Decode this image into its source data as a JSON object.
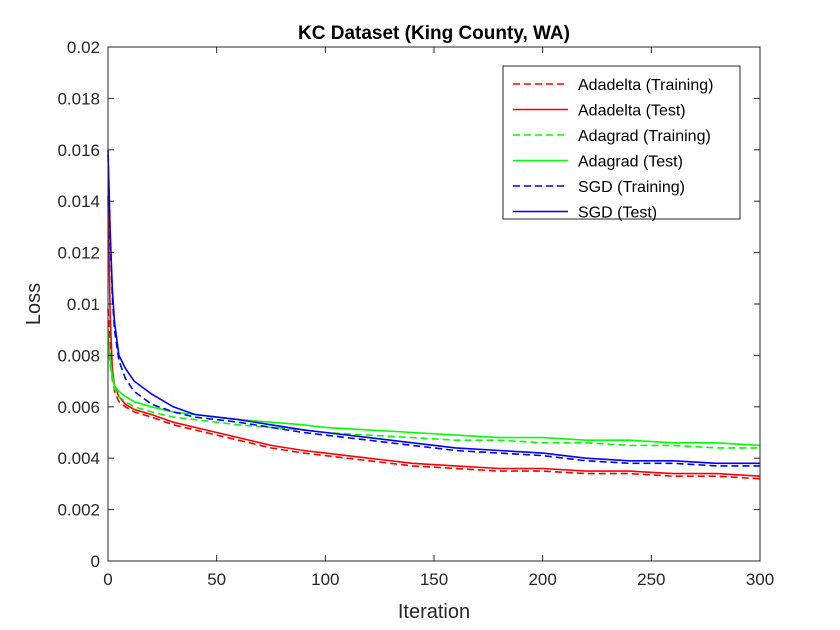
{
  "chart_data": {
    "type": "line",
    "title": "KC Dataset (King County, WA)",
    "xlabel": "Iteration",
    "ylabel": "Loss",
    "xlim": [
      0,
      300
    ],
    "ylim": [
      0,
      0.02
    ],
    "xticks": [
      0,
      50,
      100,
      150,
      200,
      250,
      300
    ],
    "xtick_labels": [
      "0",
      "50",
      "100",
      "150",
      "200",
      "250",
      "300"
    ],
    "yticks": [
      0,
      0.002,
      0.004,
      0.006,
      0.008,
      0.01,
      0.012,
      0.014,
      0.016,
      0.018,
      0.02
    ],
    "ytick_labels": [
      "0",
      "0.002",
      "0.004",
      "0.006",
      "0.008",
      "0.01",
      "0.012",
      "0.014",
      "0.016",
      "0.018",
      "0.02"
    ],
    "grid": false,
    "legend_position": "top-right",
    "series": [
      {
        "name": "Adadelta (Training)",
        "color": "#ff0000",
        "dash": "dashed",
        "x": [
          0,
          1,
          2,
          3,
          5,
          8,
          12,
          20,
          30,
          40,
          50,
          60,
          75,
          90,
          100,
          120,
          140,
          160,
          180,
          200,
          220,
          240,
          260,
          280,
          300
        ],
        "y": [
          0.0098,
          0.0082,
          0.0072,
          0.0066,
          0.0062,
          0.006,
          0.0058,
          0.0056,
          0.0053,
          0.0051,
          0.0049,
          0.0047,
          0.0044,
          0.0042,
          0.0041,
          0.0039,
          0.0037,
          0.0036,
          0.0035,
          0.0035,
          0.0034,
          0.0034,
          0.0033,
          0.0033,
          0.0032
        ]
      },
      {
        "name": "Adadelta (Test)",
        "color": "#ff0000",
        "dash": "solid",
        "x": [
          0,
          1,
          2,
          3,
          5,
          8,
          12,
          20,
          30,
          40,
          50,
          60,
          75,
          90,
          100,
          120,
          140,
          160,
          180,
          200,
          220,
          240,
          260,
          280,
          300
        ],
        "y": [
          0.0142,
          0.0095,
          0.0075,
          0.0068,
          0.0064,
          0.0061,
          0.0059,
          0.0057,
          0.0054,
          0.0052,
          0.005,
          0.0048,
          0.0045,
          0.0043,
          0.0042,
          0.004,
          0.0038,
          0.0037,
          0.0036,
          0.0036,
          0.0035,
          0.0035,
          0.0034,
          0.0034,
          0.0033
        ]
      },
      {
        "name": "Adagrad (Training)",
        "color": "#00ff00",
        "dash": "dashed",
        "x": [
          0,
          1,
          2,
          3,
          5,
          8,
          12,
          20,
          30,
          40,
          50,
          60,
          75,
          90,
          100,
          120,
          140,
          160,
          180,
          200,
          220,
          240,
          260,
          280,
          300
        ],
        "y": [
          0.0085,
          0.0076,
          0.007,
          0.0067,
          0.0064,
          0.0062,
          0.006,
          0.0058,
          0.0056,
          0.0055,
          0.0054,
          0.0053,
          0.0052,
          0.0051,
          0.005,
          0.0049,
          0.0048,
          0.0047,
          0.0047,
          0.0046,
          0.0046,
          0.0045,
          0.0045,
          0.0044,
          0.0044
        ]
      },
      {
        "name": "Adagrad (Test)",
        "color": "#00ff00",
        "dash": "solid",
        "x": [
          0,
          1,
          2,
          3,
          5,
          8,
          12,
          20,
          30,
          40,
          50,
          60,
          75,
          90,
          100,
          120,
          140,
          160,
          180,
          200,
          220,
          240,
          260,
          280,
          300
        ],
        "y": [
          0.009,
          0.0078,
          0.0072,
          0.0068,
          0.0066,
          0.0064,
          0.0062,
          0.006,
          0.0058,
          0.0057,
          0.0056,
          0.0055,
          0.0054,
          0.0053,
          0.0052,
          0.0051,
          0.005,
          0.0049,
          0.0048,
          0.0048,
          0.0047,
          0.0047,
          0.0046,
          0.0046,
          0.0045
        ]
      },
      {
        "name": "SGD (Training)",
        "color": "#0000ff",
        "dash": "dashed",
        "x": [
          0,
          1,
          2,
          3,
          5,
          8,
          12,
          20,
          30,
          40,
          50,
          60,
          75,
          90,
          100,
          120,
          140,
          160,
          180,
          200,
          220,
          240,
          260,
          280,
          300
        ],
        "y": [
          0.0158,
          0.0125,
          0.0103,
          0.009,
          0.0078,
          0.0071,
          0.0066,
          0.0061,
          0.0058,
          0.0056,
          0.0055,
          0.0054,
          0.0052,
          0.005,
          0.0049,
          0.0047,
          0.0045,
          0.0043,
          0.0042,
          0.0041,
          0.0039,
          0.0038,
          0.0038,
          0.0037,
          0.0037
        ]
      },
      {
        "name": "SGD (Test)",
        "color": "#0000ff",
        "dash": "solid",
        "x": [
          0,
          1,
          2,
          3,
          5,
          8,
          12,
          20,
          30,
          40,
          50,
          60,
          75,
          90,
          100,
          120,
          140,
          160,
          180,
          200,
          220,
          240,
          260,
          280,
          300
        ],
        "y": [
          0.016,
          0.0128,
          0.0106,
          0.0093,
          0.008,
          0.0075,
          0.007,
          0.0065,
          0.006,
          0.0057,
          0.0056,
          0.0055,
          0.0053,
          0.0051,
          0.005,
          0.0048,
          0.0046,
          0.0044,
          0.0043,
          0.0042,
          0.004,
          0.0039,
          0.0039,
          0.0038,
          0.0038
        ]
      }
    ]
  }
}
